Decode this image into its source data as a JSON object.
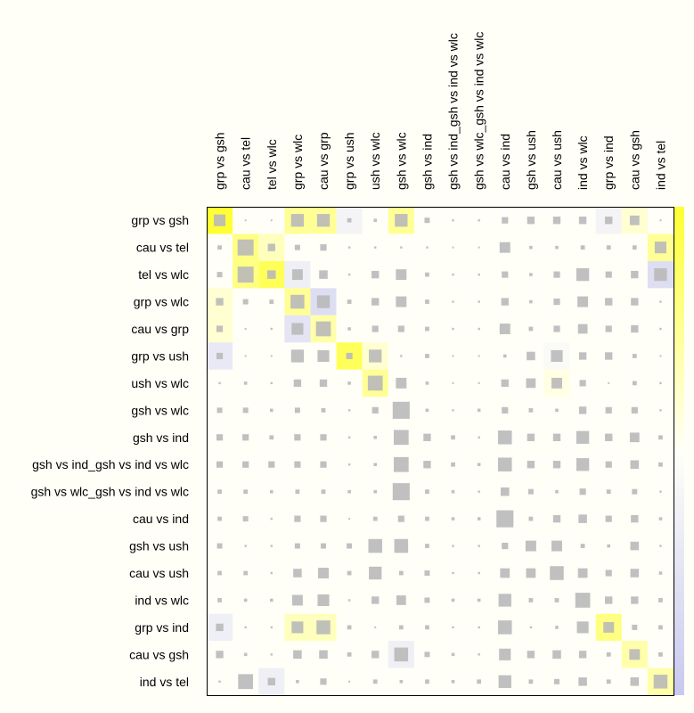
{
  "chart_data": {
    "type": "heatmap",
    "title": "",
    "rows": [
      "grp vs gsh",
      "cau vs tel",
      "tel vs wlc",
      "grp vs wlc",
      "cau vs grp",
      "grp vs ush",
      "ush vs wlc",
      "gsh vs wlc",
      "gsh vs ind",
      "gsh vs ind_gsh vs ind vs wlc",
      "gsh vs wlc_gsh vs ind vs wlc",
      "cau vs ind",
      "gsh vs ush",
      "cau vs ush",
      "ind vs wlc",
      "grp vs ind",
      "cau vs gsh",
      "ind vs tel"
    ],
    "columns": [
      "grp vs gsh",
      "cau vs tel",
      "tel vs wlc",
      "grp vs wlc",
      "cau vs grp",
      "grp vs ush",
      "ush vs wlc",
      "gsh vs wlc",
      "gsh vs ind",
      "gsh vs ind_gsh vs ind vs wlc",
      "gsh vs wlc_gsh vs ind vs wlc",
      "cau vs ind",
      "gsh vs ush",
      "cau vs ush",
      "ind vs wlc",
      "grp vs ind",
      "cau vs gsh",
      "ind vs tel"
    ],
    "size_scale": [
      0,
      1
    ],
    "color_scale": [
      -1,
      1
    ],
    "colorbar": {
      "low_color": "#c8c8f0",
      "mid_color": "#fffff8",
      "high_color": "#ffff33"
    },
    "marker_color": "#b9b9b9",
    "size_matrix": [
      [
        0.55,
        0.05,
        0.05,
        0.6,
        0.6,
        0.2,
        0.15,
        0.6,
        0.25,
        0.1,
        0.1,
        0.3,
        0.35,
        0.35,
        0.35,
        0.35,
        0.45,
        0.05
      ],
      [
        0.2,
        0.75,
        0.35,
        0.25,
        0.3,
        0.1,
        0.1,
        0.1,
        0.1,
        0.05,
        0.02,
        0.5,
        0.15,
        0.15,
        0.2,
        0.2,
        0.2,
        0.55
      ],
      [
        0.25,
        0.75,
        0.4,
        0.5,
        0.4,
        0.1,
        0.35,
        0.5,
        0.2,
        0.1,
        0.1,
        0.3,
        0.15,
        0.3,
        0.6,
        0.3,
        0.35,
        0.6
      ],
      [
        0.35,
        0.25,
        0.2,
        0.65,
        0.6,
        0.2,
        0.35,
        0.5,
        0.2,
        0.1,
        0.1,
        0.35,
        0.15,
        0.3,
        0.5,
        0.35,
        0.35,
        0.1
      ],
      [
        0.3,
        0.05,
        0.1,
        0.55,
        0.7,
        0.15,
        0.3,
        0.3,
        0.2,
        0.1,
        0.1,
        0.5,
        0.2,
        0.3,
        0.45,
        0.3,
        0.35,
        0.1
      ],
      [
        0.3,
        0.05,
        0.05,
        0.6,
        0.55,
        0.3,
        0.6,
        0.1,
        0.2,
        0.05,
        0.05,
        0.15,
        0.4,
        0.55,
        0.35,
        0.35,
        0.2,
        0.05
      ],
      [
        0.1,
        0.15,
        0.1,
        0.35,
        0.35,
        0.15,
        0.7,
        0.5,
        0.15,
        0.05,
        0.05,
        0.35,
        0.45,
        0.5,
        0.3,
        0.05,
        0.2,
        0.1
      ],
      [
        0.25,
        0.25,
        0.15,
        0.25,
        0.2,
        0.1,
        0.3,
        0.8,
        0.15,
        0.1,
        0.15,
        0.3,
        0.2,
        0.15,
        0.35,
        0.3,
        0.3,
        0.1
      ],
      [
        0.3,
        0.3,
        0.2,
        0.3,
        0.3,
        0.1,
        0.15,
        0.7,
        0.35,
        0.2,
        0.1,
        0.65,
        0.35,
        0.35,
        0.6,
        0.35,
        0.45,
        0.2
      ],
      [
        0.3,
        0.3,
        0.3,
        0.3,
        0.3,
        0.1,
        0.15,
        0.7,
        0.35,
        0.2,
        0.15,
        0.65,
        0.35,
        0.35,
        0.6,
        0.3,
        0.4,
        0.2
      ],
      [
        0.2,
        0.2,
        0.15,
        0.2,
        0.2,
        0.15,
        0.15,
        0.8,
        0.2,
        0.15,
        0.1,
        0.4,
        0.25,
        0.15,
        0.3,
        0.2,
        0.25,
        0.1
      ],
      [
        0.2,
        0.25,
        0.1,
        0.3,
        0.3,
        0.05,
        0.2,
        0.3,
        0.2,
        0.15,
        0.15,
        0.8,
        0.2,
        0.35,
        0.4,
        0.3,
        0.35,
        0.15
      ],
      [
        0.25,
        0.1,
        0.1,
        0.25,
        0.25,
        0.25,
        0.65,
        0.65,
        0.2,
        0.1,
        0.1,
        0.3,
        0.5,
        0.5,
        0.2,
        0.15,
        0.4,
        0.1
      ],
      [
        0.2,
        0.2,
        0.1,
        0.4,
        0.5,
        0.2,
        0.6,
        0.2,
        0.25,
        0.1,
        0.1,
        0.45,
        0.45,
        0.65,
        0.45,
        0.3,
        0.4,
        0.15
      ],
      [
        0.2,
        0.15,
        0.15,
        0.5,
        0.55,
        0.1,
        0.35,
        0.45,
        0.25,
        0.15,
        0.15,
        0.6,
        0.2,
        0.2,
        0.7,
        0.35,
        0.35,
        0.2
      ],
      [
        0.35,
        0.1,
        0.1,
        0.55,
        0.65,
        0.2,
        0.05,
        0.2,
        0.2,
        0.1,
        0.1,
        0.65,
        0.1,
        0.15,
        0.55,
        0.5,
        0.25,
        0.2
      ],
      [
        0.35,
        0.15,
        0.1,
        0.4,
        0.4,
        0.2,
        0.35,
        0.65,
        0.25,
        0.15,
        0.1,
        0.55,
        0.35,
        0.4,
        0.35,
        0.2,
        0.5,
        0.2
      ],
      [
        0.1,
        0.7,
        0.35,
        0.15,
        0.3,
        0.05,
        0.2,
        0.15,
        0.2,
        0.15,
        0.2,
        0.6,
        0.2,
        0.25,
        0.4,
        0.2,
        0.4,
        0.65
      ]
    ],
    "color_matrix": [
      [
        1,
        0,
        0,
        0.5,
        0.5,
        -0.2,
        0,
        0.5,
        0,
        0,
        0,
        0,
        0,
        0,
        0,
        -0.2,
        0.2,
        0
      ],
      [
        0,
        0.6,
        0.3,
        0,
        0,
        0,
        0,
        0,
        0,
        0,
        0,
        0,
        0,
        0,
        0,
        0,
        0,
        0.5
      ],
      [
        0,
        0.6,
        0.8,
        -0.3,
        0,
        0,
        0,
        0,
        0,
        0,
        0,
        0,
        0,
        0,
        0,
        0,
        0,
        -0.6
      ],
      [
        0.2,
        0,
        0,
        0.5,
        -0.6,
        0,
        0,
        0,
        0,
        0,
        0,
        0,
        0,
        0,
        0,
        0,
        0,
        0
      ],
      [
        0.2,
        0,
        0,
        -0.5,
        0.4,
        0,
        0,
        0,
        0,
        0,
        0,
        0,
        0,
        0,
        0,
        0,
        0,
        0
      ],
      [
        -0.4,
        0,
        0,
        0,
        0,
        0.8,
        0.2,
        0,
        0,
        0,
        0,
        0,
        0,
        -0.1,
        0,
        0,
        0,
        0
      ],
      [
        0,
        0,
        0,
        0,
        0,
        0,
        0.5,
        0,
        0,
        0,
        0,
        0,
        0,
        0.1,
        0,
        0,
        0,
        0
      ],
      [
        0,
        0,
        0,
        0,
        0,
        0,
        0,
        0,
        0,
        0,
        0,
        0,
        0,
        0,
        0,
        0,
        0,
        0
      ],
      [
        0,
        0,
        0,
        0,
        0,
        0,
        0,
        0,
        0,
        0,
        0,
        0,
        0,
        0,
        0,
        0,
        0,
        0
      ],
      [
        0,
        0,
        0,
        0,
        0,
        0,
        0,
        0,
        0,
        0,
        0,
        0,
        0,
        0,
        0,
        0,
        0,
        0
      ],
      [
        0,
        0,
        0,
        0,
        0,
        0,
        0,
        0,
        0,
        0,
        0,
        0,
        0,
        0,
        0,
        0,
        0,
        0
      ],
      [
        0,
        0,
        0,
        0,
        0,
        0,
        0,
        0,
        0,
        0,
        0,
        0,
        0,
        0,
        0,
        0,
        0,
        0
      ],
      [
        0,
        0,
        0,
        0,
        0,
        0,
        0,
        0,
        0,
        0,
        0,
        0,
        0,
        0,
        0,
        0,
        0,
        0
      ],
      [
        0,
        0,
        0,
        0,
        0,
        0,
        0,
        0,
        0,
        0,
        0,
        0,
        0,
        0,
        0,
        0,
        0,
        0
      ],
      [
        0,
        0,
        0,
        0,
        0,
        0,
        0,
        0,
        0,
        0,
        0,
        0,
        0,
        0,
        0,
        0,
        0,
        0
      ],
      [
        -0.3,
        0,
        0,
        0.3,
        0.3,
        0,
        0,
        0,
        0,
        0,
        0,
        0,
        0,
        0,
        0,
        0.6,
        0,
        0
      ],
      [
        0,
        0,
        0,
        0,
        0,
        0,
        0,
        -0.3,
        0,
        0,
        0,
        0,
        0,
        0,
        0,
        0,
        0.4,
        0
      ],
      [
        0,
        0,
        -0.3,
        0,
        0,
        0,
        0,
        0,
        0,
        0,
        0,
        0,
        0,
        0,
        0,
        0,
        0,
        0.4
      ]
    ]
  }
}
